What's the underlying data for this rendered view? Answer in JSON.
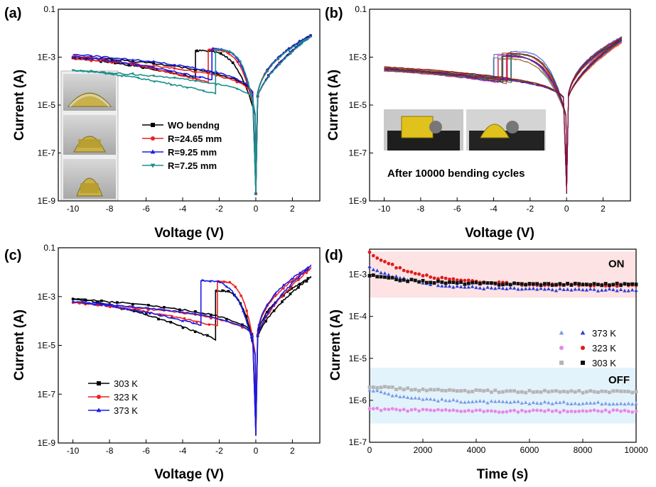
{
  "chart_data": [
    {
      "panel": "(a)",
      "type": "line",
      "xlabel": "Voltage (V)",
      "ylabel": "Current (A)",
      "xlim": [
        -10.8,
        3.5
      ],
      "ylim": [
        1e-09,
        0.1
      ],
      "yscale": "log",
      "xticks": [
        "-10",
        "-8",
        "-6",
        "-4",
        "-2",
        "0",
        "2"
      ],
      "yticks": [
        "1E-9",
        "1E-7",
        "1E-5",
        "1E-3",
        "0.1"
      ],
      "legend_position": "middle-right",
      "photos": [
        "bent-device-photo-1",
        "bent-device-photo-2",
        "bent-device-photo-3"
      ],
      "series": [
        {
          "name": "WO bendng",
          "color": "#000000",
          "marker": "square",
          "lrs": 0.0011,
          "hrs_start": 0.00088,
          "hrs_end": 6e-05,
          "switch_v": -3.3,
          "pos_high": 0.008
        },
        {
          "name": "R=24.65 mm",
          "color": "#ee2020",
          "marker": "circle",
          "lrs": 0.00085,
          "hrs_start": 0.0011,
          "hrs_end": 3e-05,
          "switch_v": -2.6,
          "pos_high": 0.0075
        },
        {
          "name": "R=9.25 mm",
          "color": "#1a1ae6",
          "marker": "triangle",
          "lrs": 0.0013,
          "hrs_start": 0.001,
          "hrs_end": 4.5e-05,
          "switch_v": -2.4,
          "pos_high": 0.008
        },
        {
          "name": "R=7.25 mm",
          "color": "#1b8f8a",
          "marker": "triangle-down",
          "lrs": 0.00028,
          "hrs_start": 0.00028,
          "hrs_end": 1.2e-05,
          "switch_v": -2.2,
          "pos_high": 0.007
        }
      ]
    },
    {
      "panel": "(b)",
      "type": "line",
      "xlabel": "Voltage (V)",
      "ylabel": "Current (A)",
      "xlim": [
        -10.8,
        3.5
      ],
      "ylim": [
        1e-09,
        0.1
      ],
      "yscale": "log",
      "xticks": [
        "-10",
        "-8",
        "-6",
        "-4",
        "-2",
        "0",
        "2"
      ],
      "yticks": [
        "1E-9",
        "1E-7",
        "1E-5",
        "1E-3",
        "0.1"
      ],
      "annotation": "After 10000 bending cycles",
      "photos": [
        "bending-fixture-photo-1",
        "bending-fixture-photo-2"
      ],
      "cycle_colors": [
        "#000000",
        "#e41a1c",
        "#1f3fd6",
        "#00a0a0",
        "#cc00cc",
        "#8a6d00",
        "#ff1493",
        "#0a7a0a",
        "#6b3fa0",
        "#d55e00",
        "#203080",
        "#990033"
      ]
    },
    {
      "panel": "(c)",
      "type": "line",
      "xlabel": "Voltage (V)",
      "ylabel": "Current (A)",
      "xlim": [
        -10.8,
        3.5
      ],
      "ylim": [
        1e-09,
        0.1
      ],
      "yscale": "log",
      "xticks": [
        "-10",
        "-8",
        "-6",
        "-4",
        "-2",
        "0",
        "2"
      ],
      "yticks": [
        "1E-9",
        "1E-7",
        "1E-5",
        "1E-3",
        "0.1"
      ],
      "legend_position": "lower-left",
      "series": [
        {
          "name": "303 K",
          "color": "#000000",
          "marker": "square",
          "lrs": 0.0008,
          "hrs_start": 0.0008,
          "hrs_end": 3.5e-06,
          "switch_v": -2.2,
          "pos_high": 0.006
        },
        {
          "name": "323 K",
          "color": "#ee2020",
          "marker": "circle",
          "lrs": 0.00055,
          "hrs_start": 0.00055,
          "hrs_end": 2.5e-05,
          "switch_v": -2.1,
          "pos_high": 0.014
        },
        {
          "name": "373 K",
          "color": "#1a1ae6",
          "marker": "triangle",
          "lrs": 0.0006,
          "hrs_start": 0.0006,
          "hrs_end": 2.8e-05,
          "switch_v": -3.0,
          "pos_high": 0.018
        }
      ]
    },
    {
      "panel": "(d)",
      "type": "scatter",
      "xlabel": "Time (s)",
      "ylabel": "Current (A)",
      "xlim": [
        0,
        10000
      ],
      "ylim": [
        1e-07,
        0.004
      ],
      "yscale": "log",
      "xticks": [
        "0",
        "2000",
        "4000",
        "6000",
        "8000",
        "10000"
      ],
      "yticks": [
        "1E-7",
        "1E-6",
        "1E-5",
        "1E-4",
        "1E-3"
      ],
      "bands": [
        {
          "label": "ON",
          "from": 0.00028,
          "to": 0.0035,
          "color": "#fde3e4"
        },
        {
          "label": "OFF",
          "from": 2.8e-07,
          "to": 6e-06,
          "color": "#e3f3fb"
        }
      ],
      "legend_position": "middle-right",
      "series": [
        {
          "name": "373 K",
          "state": "ON",
          "color": "#2a3fd8",
          "marker": "triangle",
          "start": 0.0015,
          "end": 0.00042
        },
        {
          "name": "373 K",
          "state": "OFF",
          "color": "#7e9ae8",
          "marker": "triangle",
          "start": 1.8e-06,
          "end": 8.5e-07
        },
        {
          "name": "323 K",
          "state": "ON",
          "color": "#e21b1b",
          "marker": "circle",
          "start": 0.0032,
          "end": 0.00055
        },
        {
          "name": "323 K",
          "state": "OFF",
          "color": "#e987e8",
          "marker": "circle",
          "start": 6.2e-07,
          "end": 5.5e-07
        },
        {
          "name": "303 K",
          "state": "ON",
          "color": "#111111",
          "marker": "square",
          "start": 0.00095,
          "end": 0.00058
        },
        {
          "name": "303 K",
          "state": "OFF",
          "color": "#b5b5b5",
          "marker": "square",
          "start": 2.2e-06,
          "end": 1.6e-06
        }
      ]
    }
  ]
}
